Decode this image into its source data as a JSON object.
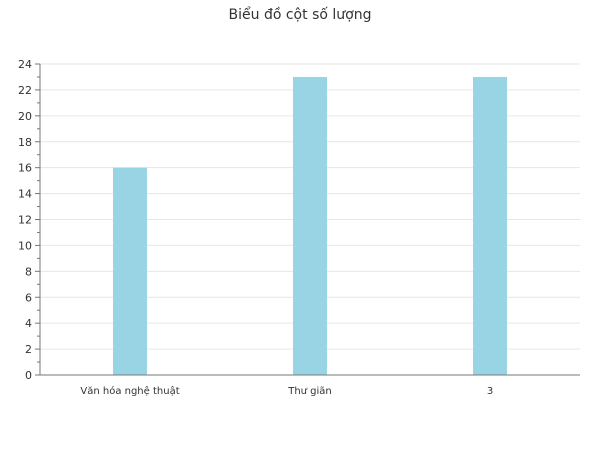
{
  "chart_data": {
    "type": "bar",
    "title": "Biểu đồ cột số lượng",
    "xlabel": "",
    "ylabel": "",
    "categories": [
      "Văn hóa nghệ thuật",
      "Thư giãn",
      "3"
    ],
    "values": [
      16,
      23,
      23
    ],
    "ylim": [
      0,
      24
    ],
    "ytick_step": 2,
    "grid": true,
    "legend": "none",
    "colors": {
      "bar": "#99d4e5",
      "grid": "#e6e6e6",
      "axis": "#777777",
      "text": "#333333"
    }
  }
}
